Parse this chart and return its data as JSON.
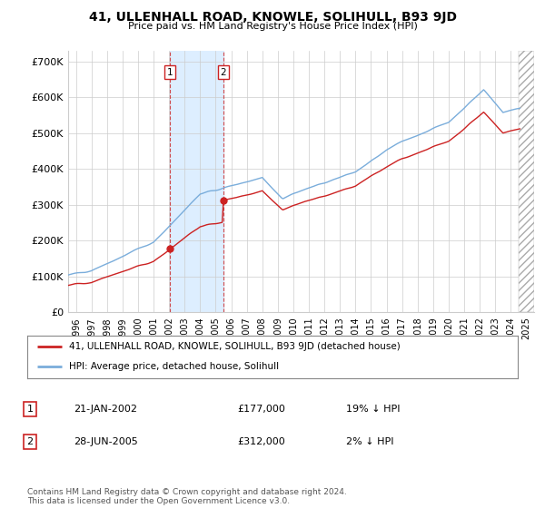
{
  "title": "41, ULLENHALL ROAD, KNOWLE, SOLIHULL, B93 9JD",
  "subtitle": "Price paid vs. HM Land Registry's House Price Index (HPI)",
  "ylim": [
    0,
    730000
  ],
  "yticks": [
    0,
    100000,
    200000,
    300000,
    400000,
    500000,
    600000,
    700000
  ],
  "ytick_labels": [
    "£0",
    "£100K",
    "£200K",
    "£300K",
    "£400K",
    "£500K",
    "£600K",
    "£700K"
  ],
  "xlim_start": 1995.5,
  "xlim_end": 2025.5,
  "sale1_date": 2002.055,
  "sale1_price": 177000,
  "sale2_date": 2005.49,
  "sale2_price": 312000,
  "hpi_color": "#7aaddb",
  "price_color": "#cc2222",
  "shade_color": "#ddeeff",
  "legend_line1": "41, ULLENHALL ROAD, KNOWLE, SOLIHULL, B93 9JD (detached house)",
  "legend_line2": "HPI: Average price, detached house, Solihull",
  "table_row1": [
    "1",
    "21-JAN-2002",
    "£177,000",
    "19% ↓ HPI"
  ],
  "table_row2": [
    "2",
    "28-JUN-2005",
    "£312,000",
    "2% ↓ HPI"
  ],
  "footnote": "Contains HM Land Registry data © Crown copyright and database right 2024.\nThis data is licensed under the Open Government Licence v3.0.",
  "background_color": "#ffffff",
  "grid_color": "#cccccc",
  "hatch_start": 2024.5
}
